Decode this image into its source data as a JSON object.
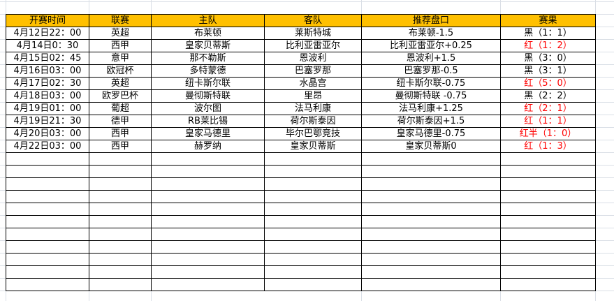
{
  "headers": [
    "开赛时间",
    "联赛",
    "主队",
    "客队",
    "推荐盘口",
    "赛果"
  ],
  "rows": [
    {
      "time": "4月12日22：00",
      "league": "英超",
      "home": "布莱顿",
      "away": "莱斯特城",
      "pick": "布莱顿-1.5",
      "result": "黑（1：1）",
      "win": false
    },
    {
      "time": "4月14日0：30",
      "league": "西甲",
      "home": "皇家贝蒂斯",
      "away": "比利亚雷亚尔",
      "pick": "比利亚雷亚尔+0.25",
      "result": "红（1：2）",
      "win": true
    },
    {
      "time": "4月15日02：45",
      "league": "意甲",
      "home": "那不勒斯",
      "away": "恩波利",
      "pick": "恩波利+1.5",
      "result": "黑（3：0）",
      "win": false
    },
    {
      "time": "4月16日03：00",
      "league": "欧冠杯",
      "home": "多特蒙德",
      "away": "巴塞罗那",
      "pick": "巴塞罗那-0.5",
      "result": "黑（3：1）",
      "win": false
    },
    {
      "time": "4月17日02：30",
      "league": "英超",
      "home": "纽卡斯尔联",
      "away": "水晶宫",
      "pick": "纽卡斯尔联-0.75",
      "result": "红（5：0）",
      "win": true
    },
    {
      "time": "4月18日03：00",
      "league": "欧罗巴杯",
      "home": "曼彻斯特联",
      "away": "里昂",
      "pick": "曼彻斯特联 -0.75",
      "result": "黑（2：2）",
      "win": false
    },
    {
      "time": "4月19日01：00",
      "league": "葡超",
      "home": "波尔图",
      "away": "法马利康",
      "pick": "法马利康+1.25",
      "result": "红（2：1）",
      "win": true
    },
    {
      "time": "4月19日21：30",
      "league": "德甲",
      "home": "RB莱比锡",
      "away": "荷尔斯泰因",
      "pick": "荷尔斯泰因+1.5",
      "result": "红（1：1）",
      "win": true
    },
    {
      "time": "4月20日03：00",
      "league": "西甲",
      "home": "皇家马德里",
      "away": "毕尔巴鄂竞技",
      "pick": "皇家马德里-0.75",
      "result": "红半（1：0）",
      "win": true
    },
    {
      "time": "4月22日03：00",
      "league": "西甲",
      "home": "赫罗纳",
      "away": "皇家贝蒂斯",
      "pick": "皇家贝蒂斯0",
      "result": "红（1：3）",
      "win": true
    }
  ],
  "colors": {
    "header_bg": "#ffc000",
    "win_text": "#ff0000",
    "grid": "#dadfe6"
  }
}
